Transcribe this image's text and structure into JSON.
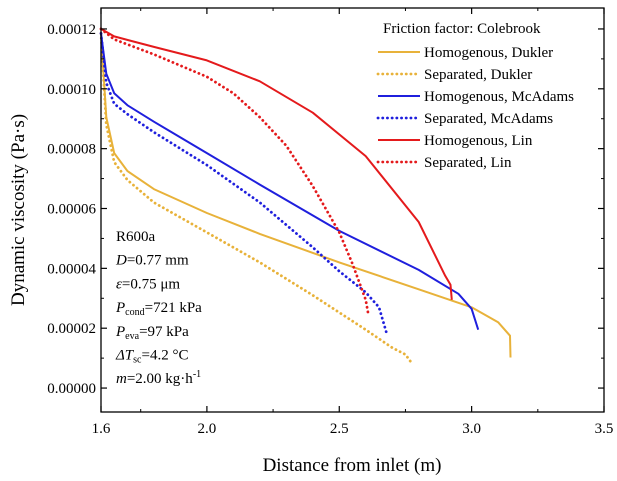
{
  "chart_data": {
    "type": "line",
    "xlabel": "Distance from inlet (m)",
    "ylabel": "Dynamic viscosity (Pa·s)",
    "xlim": [
      1.6,
      3.5
    ],
    "ylim": [
      -8e-06,
      0.000127
    ],
    "xticks": [
      1.6,
      2.0,
      2.5,
      3.0,
      3.5
    ],
    "xtick_labels": [
      "1.6",
      "2.0",
      "2.5",
      "3.0",
      "3.5"
    ],
    "yticks": [
      0,
      2e-05,
      4e-05,
      6e-05,
      8e-05,
      0.0001,
      0.00012
    ],
    "ytick_labels": [
      "0.00000",
      "0.00002",
      "0.00004",
      "0.00006",
      "0.00008",
      "0.00010",
      "0.00012"
    ],
    "grid": false,
    "legend_position": "top-right",
    "legend_title": "Friction factor: Colebrook",
    "series": [
      {
        "name": "Homogenous, Dukler",
        "color": "#E8B23A",
        "style": "solid",
        "x": [
          1.6,
          1.62,
          1.65,
          1.7,
          1.8,
          2.0,
          2.2,
          2.5,
          2.8,
          3.0,
          3.1,
          3.145,
          3.147
        ],
        "y": [
          0.0001185,
          9.05e-05,
          7.85e-05,
          7.25e-05,
          6.65e-05,
          5.85e-05,
          5.15e-05,
          4.2e-05,
          3.3e-05,
          2.7e-05,
          2.2e-05,
          1.75e-05,
          1.02e-05
        ]
      },
      {
        "name": "Separated, Dukler",
        "color": "#E8B23A",
        "style": "dotted",
        "x": [
          1.6,
          1.62,
          1.65,
          1.7,
          1.8,
          2.0,
          2.2,
          2.4,
          2.6,
          2.7,
          2.75,
          2.77
        ],
        "y": [
          0.0001185,
          8.8e-05,
          7.55e-05,
          6.95e-05,
          6.2e-05,
          5.2e-05,
          4.2e-05,
          3.1e-05,
          1.95e-05,
          1.35e-05,
          1.12e-05,
          8.8e-06
        ]
      },
      {
        "name": "Homogenous, McAdams",
        "color": "#1F1FDD",
        "style": "solid",
        "x": [
          1.6,
          1.62,
          1.65,
          1.7,
          1.8,
          2.0,
          2.2,
          2.5,
          2.8,
          2.95,
          3.0,
          3.025
        ],
        "y": [
          0.0001185,
          0.000105,
          9.85e-05,
          9.45e-05,
          8.9e-05,
          7.85e-05,
          6.8e-05,
          5.25e-05,
          3.95e-05,
          3.15e-05,
          2.65e-05,
          1.95e-05
        ]
      },
      {
        "name": "Separated, McAdams",
        "color": "#1F1FDD",
        "style": "dotted",
        "x": [
          1.6,
          1.62,
          1.65,
          1.7,
          1.8,
          2.0,
          2.2,
          2.4,
          2.5,
          2.6,
          2.65,
          2.68
        ],
        "y": [
          0.0001185,
          0.000102,
          9.5e-05,
          9.15e-05,
          8.55e-05,
          7.45e-05,
          6.2e-05,
          4.7e-05,
          3.9e-05,
          3.2e-05,
          2.7e-05,
          1.8e-05
        ]
      },
      {
        "name": "Homogenous, Lin",
        "color": "#E41A1C",
        "style": "solid",
        "x": [
          1.6,
          1.65,
          1.8,
          2.0,
          2.2,
          2.4,
          2.6,
          2.8,
          2.9,
          2.92,
          2.925
        ],
        "y": [
          0.00012,
          0.0001175,
          0.000114,
          0.0001095,
          0.0001025,
          9.2e-05,
          7.75e-05,
          5.55e-05,
          3.75e-05,
          3.45e-05,
          2.95e-05
        ]
      },
      {
        "name": "Separated, Lin",
        "color": "#E41A1C",
        "style": "dotted",
        "x": [
          1.6,
          1.65,
          1.8,
          2.0,
          2.1,
          2.2,
          2.3,
          2.4,
          2.5,
          2.55,
          2.6,
          2.61
        ],
        "y": [
          0.00012,
          0.0001165,
          0.0001115,
          0.000104,
          9.85e-05,
          9.05e-05,
          8.1e-05,
          6.75e-05,
          5.2e-05,
          4.15e-05,
          2.95e-05,
          2.45e-05
        ]
      }
    ],
    "annotation": [
      {
        "main": "R600a",
        "sub": "",
        "tail": ""
      },
      {
        "main": "D",
        "sub": "",
        "tail": "=0.77 mm"
      },
      {
        "main": "ε",
        "sub": "",
        "tail": "=0.75 μm"
      },
      {
        "main": "P",
        "sub": "cond",
        "tail": "=721 kPa"
      },
      {
        "main": "P",
        "sub": "eva",
        "tail": "=97 kPa"
      },
      {
        "main": "ΔT",
        "sub": "sc",
        "tail": "=4.2 °C"
      },
      {
        "main": "m",
        "sub": "",
        "tail": "=2.00 kg·h",
        "sup": "-1"
      }
    ]
  }
}
